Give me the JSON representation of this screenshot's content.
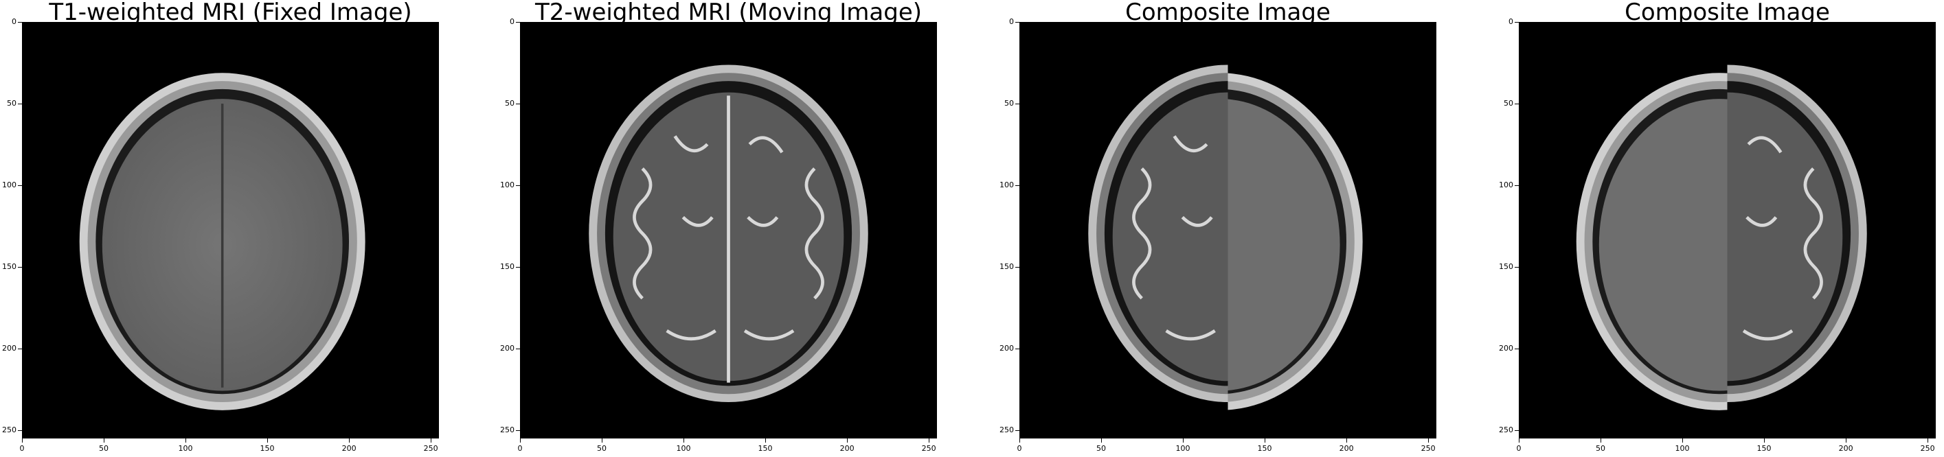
{
  "panels": [
    {
      "title": "T1-weighted MRI (Fixed Image)"
    },
    {
      "title": "T2-weighted MRI (Moving Image)"
    },
    {
      "title": "Composite Image"
    },
    {
      "title": "Composite Image"
    }
  ],
  "axes": {
    "y_ticks": [
      "0",
      "50",
      "100",
      "150",
      "200",
      "250"
    ],
    "x_ticks": [
      "0",
      "50",
      "100",
      "150",
      "200",
      "250"
    ]
  },
  "image_modes": [
    "t1",
    "t2",
    "t2-left-t1-right",
    "t1-left-t2-right"
  ],
  "colors": {
    "background": "#000000",
    "t1_skull": "#bdbdbd",
    "t1_brain": "#6e6e6e",
    "t2_csf": "#f0f0f0",
    "t2_brain": "#5a5a5a"
  }
}
